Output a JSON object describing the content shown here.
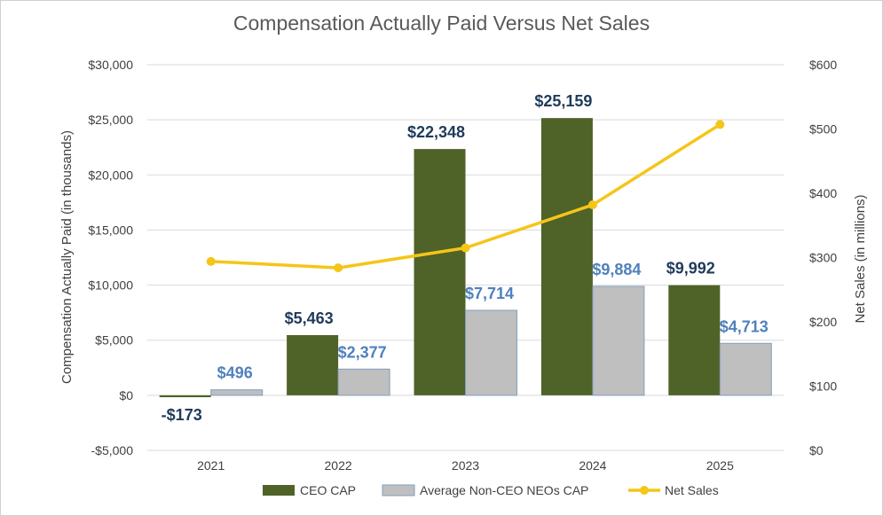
{
  "chart_data": {
    "type": "bar",
    "title": "Compensation Actually Paid Versus Net Sales",
    "categories": [
      "2021",
      "2022",
      "2023",
      "2024",
      "2025"
    ],
    "series": [
      {
        "name": "CEO CAP",
        "type": "bar",
        "axis": "left",
        "color": "#4f6228",
        "values": [
          -173,
          5463,
          22348,
          25159,
          9992
        ],
        "labels": [
          "-$173",
          "$5,463",
          "$22,348",
          "$25,159",
          "$9,992"
        ]
      },
      {
        "name": "Average Non-CEO NEOs CAP",
        "type": "bar",
        "axis": "left",
        "color": "#bfbfbf",
        "values": [
          496,
          2377,
          7714,
          9884,
          4713
        ],
        "labels": [
          "$496",
          "$2,377",
          "$7,714",
          "$9,884",
          "$4,713"
        ]
      },
      {
        "name": "Net Sales",
        "type": "line",
        "axis": "right",
        "color": "#f5c518",
        "values": [
          294,
          284,
          315,
          382,
          507
        ]
      }
    ],
    "ylabel": "Compensation Actually Paid (in thousands)",
    "y2label": "Net Sales  (in millions)",
    "ylim": [
      -5000,
      30000
    ],
    "y2lim": [
      0,
      600
    ],
    "yticks": [
      -5000,
      0,
      5000,
      10000,
      15000,
      20000,
      25000,
      30000
    ],
    "ytick_labels": [
      "-$5,000",
      "$0",
      "$5,000",
      "$10,000",
      "$15,000",
      "$20,000",
      "$25,000",
      "$30,000"
    ],
    "y2ticks": [
      0,
      100,
      200,
      300,
      400,
      500,
      600
    ],
    "y2tick_labels": [
      "$0",
      "$100",
      "$200",
      "$300",
      "$400",
      "$500",
      "$600"
    ],
    "grid": true,
    "legend": "bottom"
  }
}
